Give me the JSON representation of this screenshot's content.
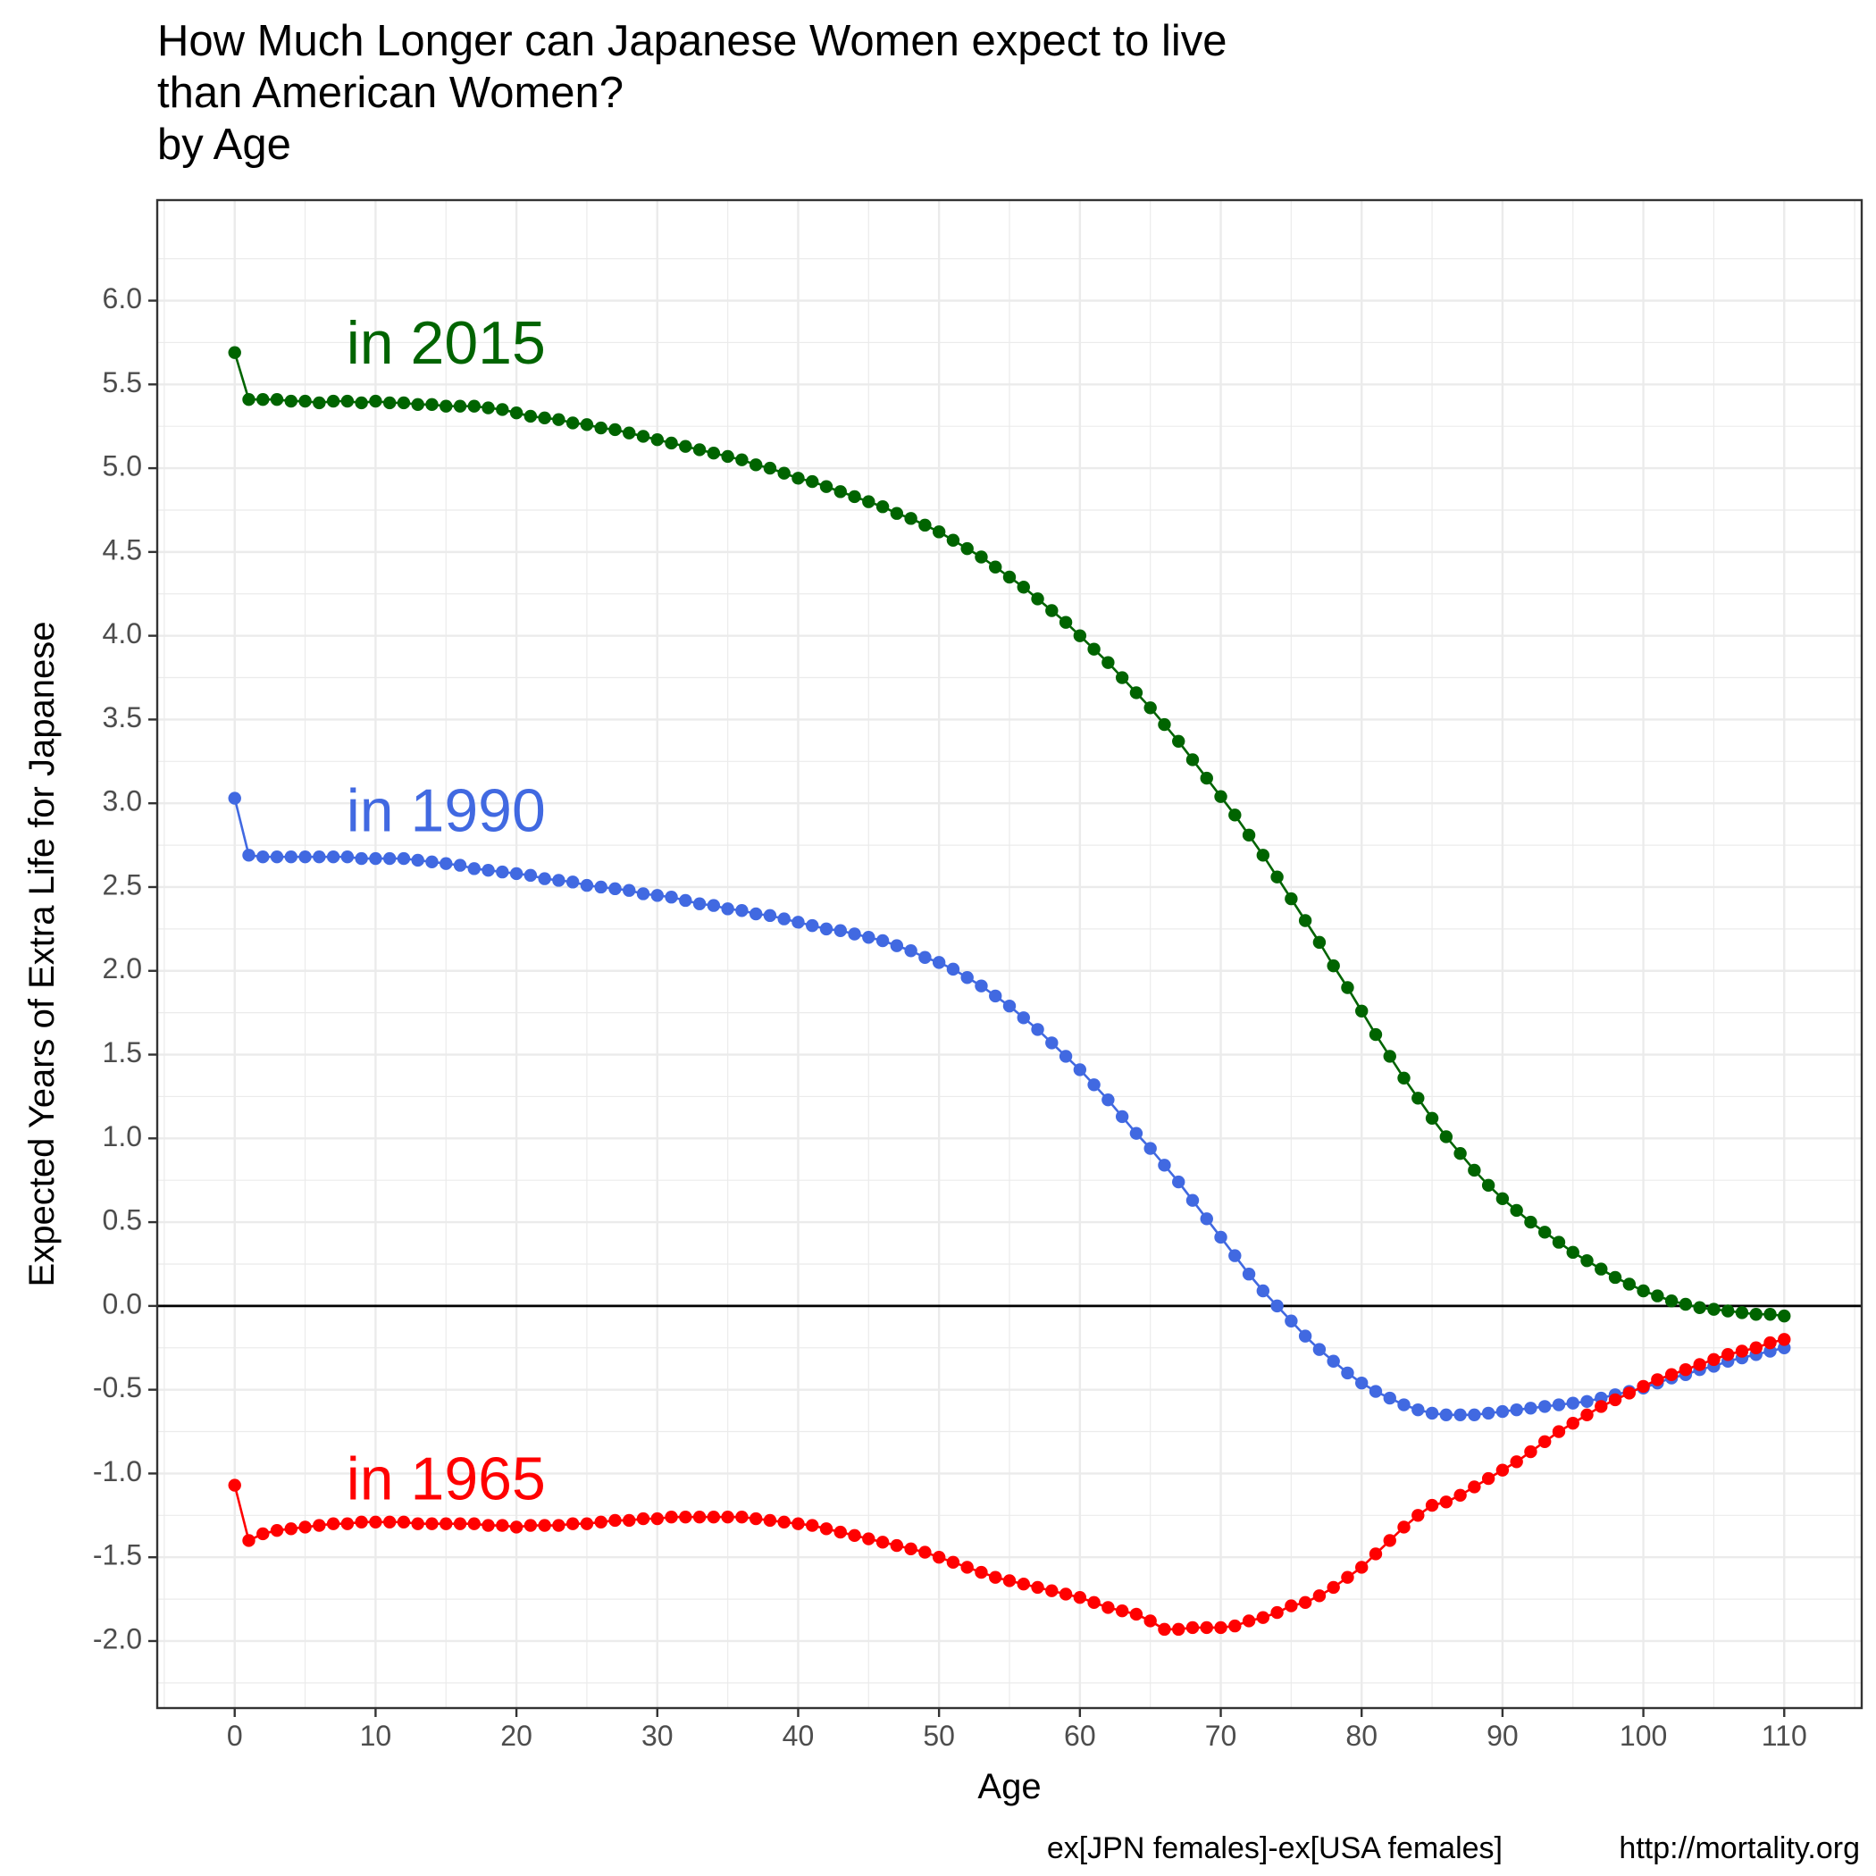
{
  "chart_data": {
    "type": "line",
    "title": [
      "How Much Longer can Japanese Women expect to live",
      "than American Women?",
      "by Age"
    ],
    "xlabel": "Age",
    "ylabel": "Expected Years of Extra Life for Japanese",
    "caption_left": "ex[JPN females]-ex[USA females]",
    "caption_right": "http://mortality.org",
    "xlim": [
      -5.5,
      115.5
    ],
    "ylim": [
      -2.4,
      6.6
    ],
    "x_ticks": [
      0,
      10,
      20,
      30,
      40,
      50,
      60,
      70,
      80,
      90,
      100,
      110
    ],
    "x_tick_labels": [
      "0",
      "10",
      "20",
      "30",
      "40",
      "50",
      "60",
      "70",
      "80",
      "90",
      "100",
      "110"
    ],
    "y_ticks": [
      -2.0,
      -1.5,
      -1.0,
      -0.5,
      0.0,
      0.5,
      1.0,
      1.5,
      2.0,
      2.5,
      3.0,
      3.5,
      4.0,
      4.5,
      5.0,
      5.5,
      6.0
    ],
    "y_tick_labels": [
      "-2.0",
      "-1.5",
      "-1.0",
      "-0.5",
      "0.0",
      "0.5",
      "1.0",
      "1.5",
      "2.0",
      "2.5",
      "3.0",
      "3.5",
      "4.0",
      "4.5",
      "5.0",
      "5.5",
      "6.0"
    ],
    "grid": true,
    "reference_line_y": 0,
    "legend": "none",
    "series": [
      {
        "name": "in 2015",
        "color": "#006400",
        "label_x": 15,
        "label_y": 5.72,
        "values": [
          5.69,
          5.41,
          5.41,
          5.41,
          5.4,
          5.4,
          5.39,
          5.4,
          5.4,
          5.39,
          5.4,
          5.39,
          5.39,
          5.38,
          5.38,
          5.37,
          5.37,
          5.37,
          5.36,
          5.35,
          5.33,
          5.31,
          5.3,
          5.29,
          5.27,
          5.26,
          5.24,
          5.23,
          5.21,
          5.19,
          5.17,
          5.15,
          5.13,
          5.11,
          5.09,
          5.07,
          5.05,
          5.02,
          5.0,
          4.97,
          4.94,
          4.92,
          4.89,
          4.86,
          4.83,
          4.8,
          4.77,
          4.73,
          4.7,
          4.66,
          4.62,
          4.57,
          4.52,
          4.47,
          4.41,
          4.35,
          4.29,
          4.22,
          4.15,
          4.08,
          4.0,
          3.92,
          3.84,
          3.75,
          3.66,
          3.57,
          3.47,
          3.37,
          3.26,
          3.15,
          3.04,
          2.93,
          2.81,
          2.69,
          2.56,
          2.43,
          2.3,
          2.17,
          2.03,
          1.9,
          1.76,
          1.62,
          1.49,
          1.36,
          1.24,
          1.12,
          1.01,
          0.91,
          0.81,
          0.72,
          0.64,
          0.57,
          0.5,
          0.44,
          0.38,
          0.32,
          0.27,
          0.22,
          0.17,
          0.13,
          0.09,
          0.06,
          0.03,
          0.01,
          -0.01,
          -0.02,
          -0.03,
          -0.04,
          -0.05,
          -0.05,
          -0.06
        ]
      },
      {
        "name": "in 1990",
        "color": "#4169e1",
        "label_x": 15,
        "label_y": 2.93,
        "values": [
          3.03,
          2.69,
          2.68,
          2.68,
          2.68,
          2.68,
          2.68,
          2.68,
          2.68,
          2.67,
          2.67,
          2.67,
          2.67,
          2.66,
          2.65,
          2.64,
          2.63,
          2.61,
          2.6,
          2.59,
          2.58,
          2.57,
          2.55,
          2.54,
          2.53,
          2.51,
          2.5,
          2.49,
          2.48,
          2.46,
          2.45,
          2.44,
          2.42,
          2.4,
          2.39,
          2.37,
          2.36,
          2.34,
          2.33,
          2.31,
          2.29,
          2.27,
          2.25,
          2.24,
          2.22,
          2.2,
          2.18,
          2.15,
          2.12,
          2.08,
          2.05,
          2.01,
          1.96,
          1.91,
          1.85,
          1.79,
          1.72,
          1.65,
          1.57,
          1.49,
          1.41,
          1.32,
          1.23,
          1.13,
          1.03,
          0.94,
          0.84,
          0.74,
          0.63,
          0.52,
          0.41,
          0.3,
          0.19,
          0.09,
          0.0,
          -0.09,
          -0.18,
          -0.26,
          -0.33,
          -0.4,
          -0.46,
          -0.51,
          -0.55,
          -0.59,
          -0.62,
          -0.64,
          -0.65,
          -0.65,
          -0.65,
          -0.64,
          -0.63,
          -0.62,
          -0.61,
          -0.6,
          -0.59,
          -0.58,
          -0.57,
          -0.55,
          -0.53,
          -0.51,
          -0.49,
          -0.46,
          -0.43,
          -0.41,
          -0.38,
          -0.36,
          -0.33,
          -0.31,
          -0.29,
          -0.27,
          -0.25
        ]
      },
      {
        "name": "in 1965",
        "color": "#ff0000",
        "label_x": 15,
        "label_y": -1.06,
        "values": [
          -1.07,
          -1.4,
          -1.36,
          -1.34,
          -1.33,
          -1.32,
          -1.31,
          -1.3,
          -1.3,
          -1.29,
          -1.29,
          -1.29,
          -1.29,
          -1.3,
          -1.3,
          -1.3,
          -1.3,
          -1.3,
          -1.31,
          -1.31,
          -1.32,
          -1.31,
          -1.31,
          -1.31,
          -1.3,
          -1.3,
          -1.29,
          -1.28,
          -1.28,
          -1.27,
          -1.27,
          -1.26,
          -1.26,
          -1.26,
          -1.26,
          -1.26,
          -1.26,
          -1.27,
          -1.28,
          -1.29,
          -1.3,
          -1.31,
          -1.33,
          -1.35,
          -1.37,
          -1.39,
          -1.41,
          -1.43,
          -1.45,
          -1.47,
          -1.5,
          -1.53,
          -1.56,
          -1.59,
          -1.62,
          -1.64,
          -1.66,
          -1.68,
          -1.7,
          -1.72,
          -1.74,
          -1.77,
          -1.8,
          -1.82,
          -1.84,
          -1.88,
          -1.93,
          -1.93,
          -1.92,
          -1.92,
          -1.92,
          -1.91,
          -1.88,
          -1.86,
          -1.83,
          -1.79,
          -1.77,
          -1.73,
          -1.68,
          -1.62,
          -1.56,
          -1.48,
          -1.4,
          -1.32,
          -1.25,
          -1.19,
          -1.17,
          -1.13,
          -1.08,
          -1.03,
          -0.98,
          -0.93,
          -0.87,
          -0.81,
          -0.75,
          -0.7,
          -0.65,
          -0.6,
          -0.56,
          -0.52,
          -0.48,
          -0.44,
          -0.41,
          -0.38,
          -0.35,
          -0.32,
          -0.29,
          -0.27,
          -0.25,
          -0.22,
          -0.2
        ]
      }
    ]
  }
}
